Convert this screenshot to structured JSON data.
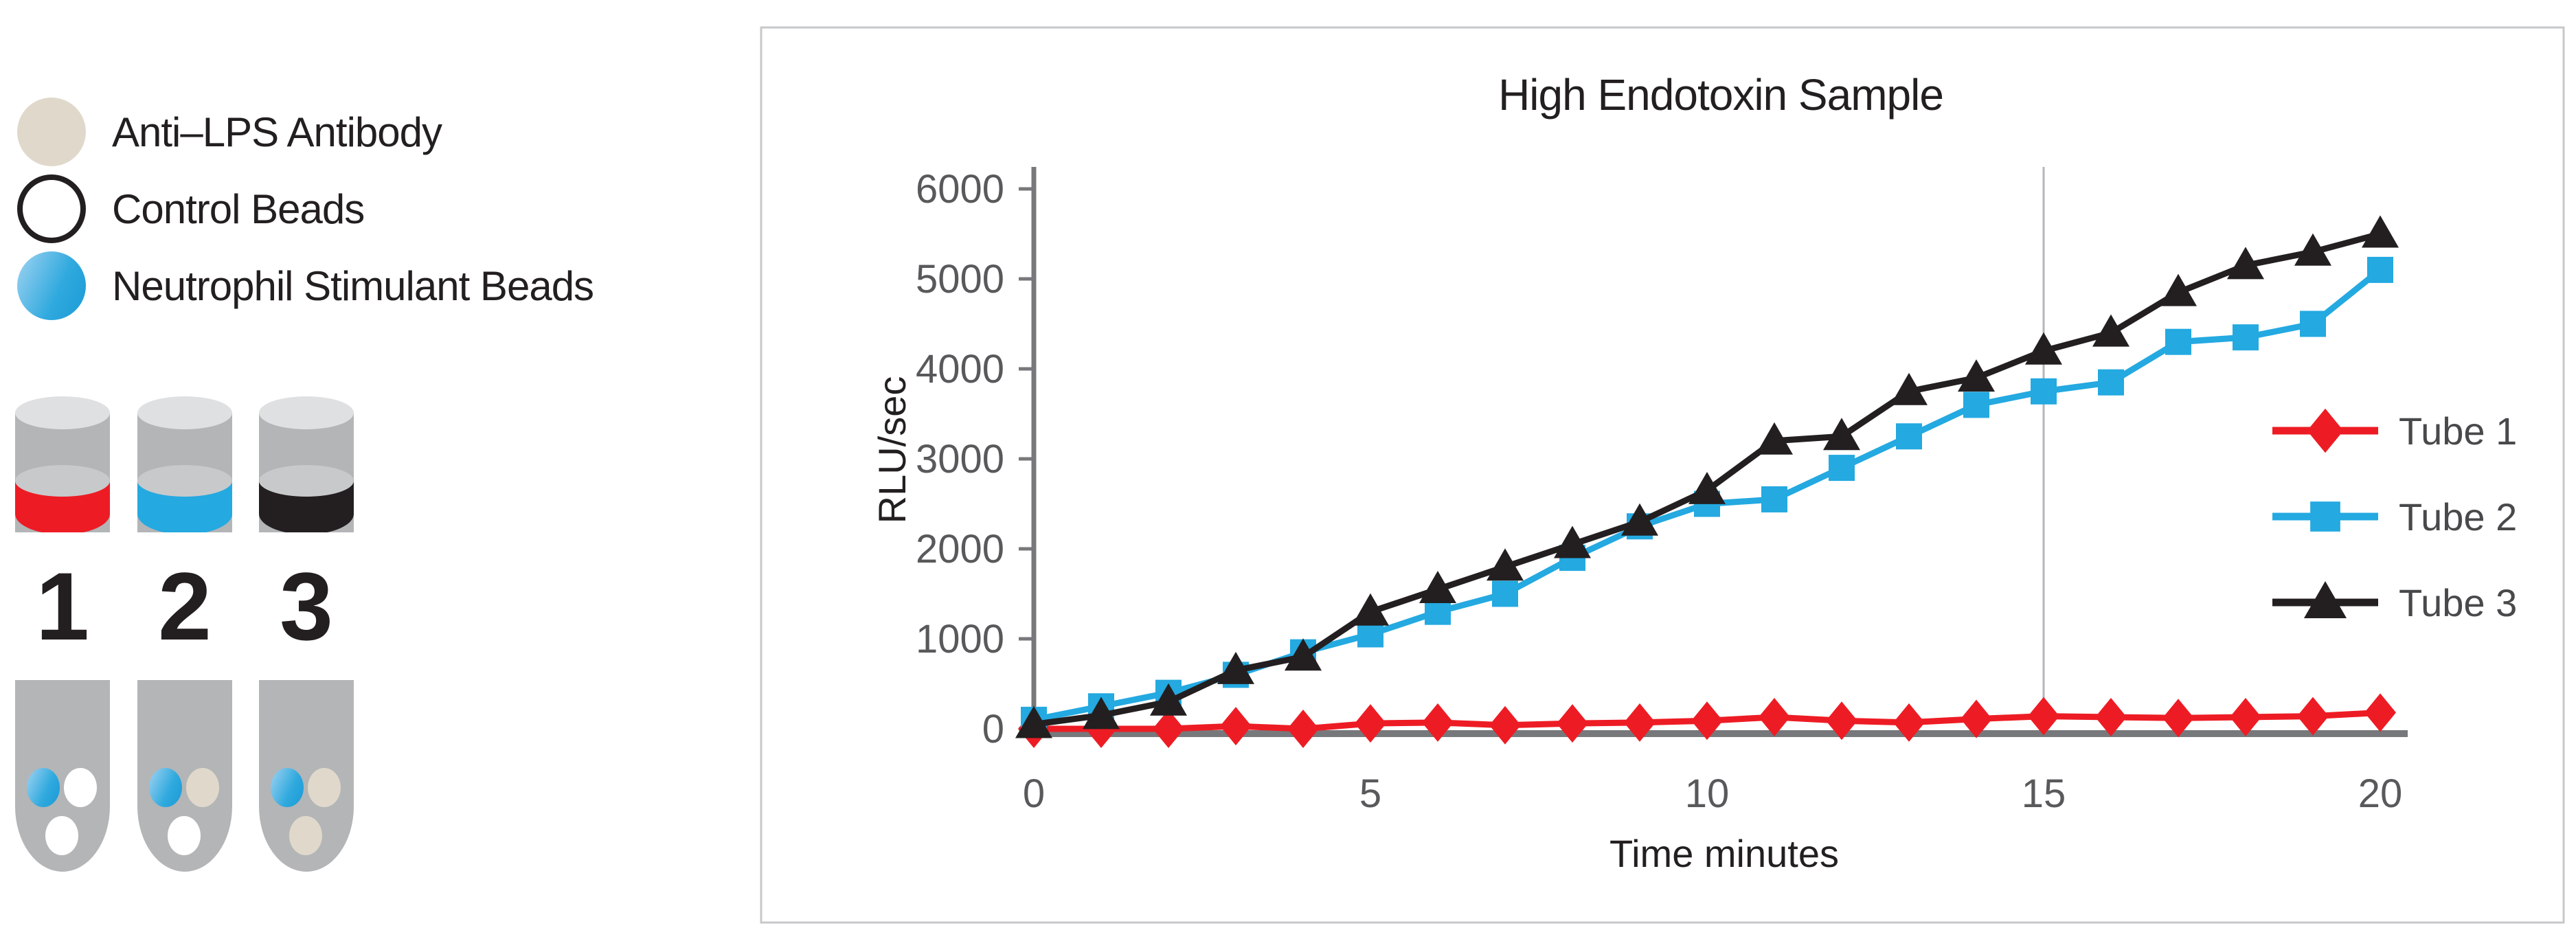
{
  "left_panel": {
    "bead_legend": [
      {
        "label": "Anti–LPS Antibody",
        "bead": "tan"
      },
      {
        "label": "Control Beads",
        "bead": "white"
      },
      {
        "label": "Neutrophil Stimulant Beads",
        "bead": "blue"
      }
    ],
    "tubes": [
      {
        "number": "1",
        "band_color": "#ED1C24",
        "beads": [
          "blue",
          "white",
          "white"
        ]
      },
      {
        "number": "2",
        "band_color": "#24A9E1",
        "beads": [
          "blue",
          "tan",
          "white"
        ]
      },
      {
        "number": "3",
        "band_color": "#231F20",
        "beads": [
          "blue",
          "tan",
          "tan"
        ]
      }
    ]
  },
  "colors": {
    "red": "#ED1C24",
    "blue": "#24A9E1",
    "black": "#231F20",
    "tan_bead": "#E0D9CB",
    "tube_gray": "#B3B5B7",
    "axis_gray": "#77787B",
    "tick_text_gray": "#58595B",
    "legend_text_gray": "#48494B",
    "frame_gray": "#C7C8CA",
    "gridline_gray": "#B4B6B8"
  },
  "chart_data": {
    "type": "line",
    "title": "High Endotoxin Sample",
    "xlabel": "Time minutes",
    "ylabel": "RLU/sec",
    "x": [
      0,
      1,
      2,
      3,
      4,
      5,
      6,
      7,
      8,
      9,
      10,
      11,
      12,
      13,
      14,
      15,
      16,
      17,
      18,
      19,
      20
    ],
    "xticks": [
      0,
      5,
      10,
      15,
      20
    ],
    "yticks": [
      0,
      1000,
      2000,
      3000,
      4000,
      5000,
      6000
    ],
    "xlim": [
      0,
      20
    ],
    "ylim": [
      0,
      6000
    ],
    "grid": "single vertical reference line",
    "vertical_gridline_x": 15,
    "legend_position": "right",
    "series": [
      {
        "name": "Tube 1",
        "color": "#ED1C24",
        "marker": "diamond",
        "values": [
          0,
          0,
          0,
          30,
          0,
          60,
          70,
          40,
          60,
          70,
          90,
          130,
          90,
          70,
          110,
          140,
          130,
          120,
          130,
          140,
          180
        ]
      },
      {
        "name": "Tube 2",
        "color": "#24A9E1",
        "marker": "square",
        "values": [
          100,
          250,
          400,
          600,
          850,
          1050,
          1300,
          1500,
          1900,
          2250,
          2500,
          2550,
          2900,
          3250,
          3600,
          3750,
          3850,
          4300,
          4350,
          4500,
          5100
        ]
      },
      {
        "name": "Tube 3",
        "color": "#231F20",
        "marker": "triangle",
        "values": [
          50,
          150,
          300,
          650,
          800,
          1300,
          1550,
          1800,
          2050,
          2300,
          2650,
          3200,
          3250,
          3750,
          3900,
          4200,
          4400,
          4850,
          5150,
          5300,
          5500
        ]
      }
    ]
  }
}
